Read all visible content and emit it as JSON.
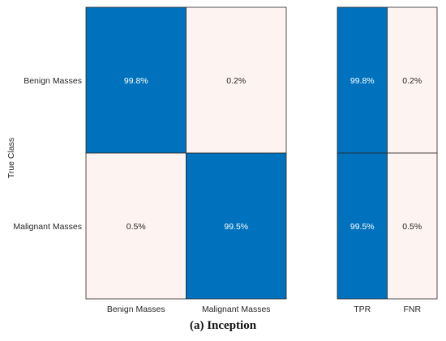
{
  "chart_data": [
    {
      "type": "heatmap",
      "title": "",
      "ylabel": "True Class",
      "xlabel": "",
      "row_labels": [
        "Benign Masses",
        "Malignant Masses"
      ],
      "col_labels": [
        "Benign Masses",
        "Malignant Masses"
      ],
      "values": [
        [
          99.8,
          0.2
        ],
        [
          0.5,
          99.5
        ]
      ],
      "value_labels": [
        [
          "99.8%",
          "0.2%"
        ],
        [
          "0.5%",
          "99.5%"
        ]
      ]
    },
    {
      "type": "heatmap",
      "title": "",
      "row_labels": [
        "Benign Masses",
        "Malignant Masses"
      ],
      "col_labels": [
        "TPR",
        "FNR"
      ],
      "values": [
        [
          99.8,
          0.2
        ],
        [
          99.5,
          0.5
        ]
      ],
      "value_labels": [
        [
          "99.8%",
          "0.2%"
        ],
        [
          "99.5%",
          "0.5%"
        ]
      ]
    }
  ],
  "colors": {
    "high": "#0072bd",
    "low": "#fdf3f1",
    "text_on_high": "#ffffff",
    "text_on_low": "#262626",
    "border": "#262626"
  },
  "caption": "(a) Inception"
}
